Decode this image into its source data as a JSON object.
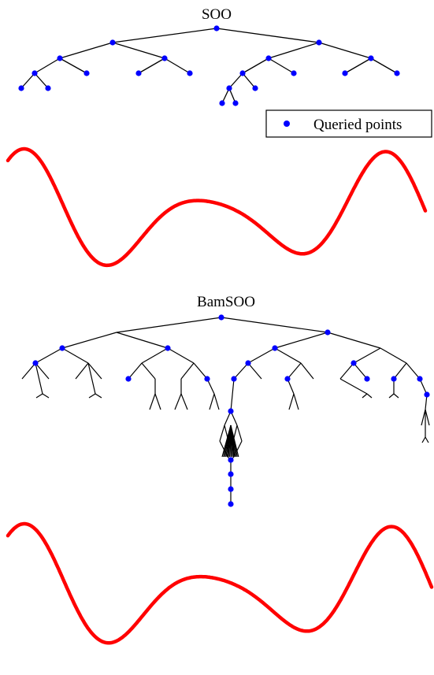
{
  "panels": [
    {
      "id": "soo",
      "title": "SOO"
    },
    {
      "id": "bamsoo",
      "title": "BamSOO"
    }
  ],
  "legend": {
    "label": "Queried points"
  },
  "colors": {
    "curve": "#ff0000",
    "point": "#0000ff",
    "edge": "#000000"
  }
}
